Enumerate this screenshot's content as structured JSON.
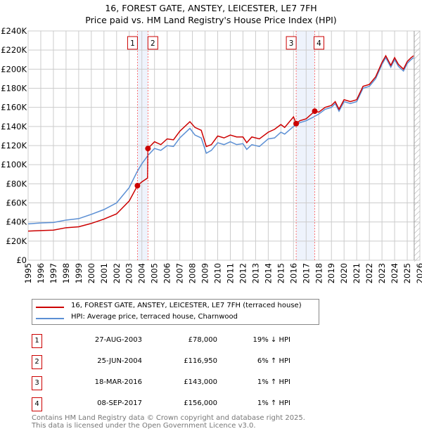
{
  "chart_data": {
    "type": "line",
    "title": "16, FOREST GATE, ANSTEY, LEICESTER, LE7 7FH",
    "subtitle": "Price paid vs. HM Land Registry's House Price Index (HPI)",
    "xlim": [
      1995,
      2026
    ],
    "ylim": [
      0,
      240000
    ],
    "y_ticks": [
      "£0",
      "£20K",
      "£40K",
      "£60K",
      "£80K",
      "£100K",
      "£120K",
      "£140K",
      "£160K",
      "£180K",
      "£200K",
      "£220K",
      "£240K"
    ],
    "x_ticks": [
      "1995",
      "1996",
      "1997",
      "1998",
      "1999",
      "2000",
      "2001",
      "2002",
      "2003",
      "2004",
      "2005",
      "2006",
      "2007",
      "2008",
      "2009",
      "2010",
      "2011",
      "2012",
      "2013",
      "2014",
      "2015",
      "2016",
      "2017",
      "2018",
      "2019",
      "2020",
      "2021",
      "2022",
      "2023",
      "2024",
      "2025",
      "2026"
    ],
    "series": [
      {
        "name": "16, FOREST GATE, ANSTEY, LEICESTER, LE7 7FH (terraced house)",
        "color": "#cc0000",
        "x": [
          1995,
          1996,
          1997,
          1998,
          1999,
          2000,
          2001,
          2002,
          2003,
          2003.65,
          2004,
          2004.45,
          2004.48,
          2005,
          2005.5,
          2006,
          2006.5,
          2007,
          2007.8,
          2008.2,
          2008.7,
          2009.1,
          2009.5,
          2010,
          2010.5,
          2011,
          2011.5,
          2012,
          2012.3,
          2012.7,
          2013.3,
          2014,
          2014.5,
          2015,
          2015.3,
          2016,
          2016.21,
          2016.5,
          2017,
          2017.68,
          2018,
          2018.5,
          2019,
          2019.3,
          2019.6,
          2020,
          2020.5,
          2021,
          2021.5,
          2022,
          2022.5,
          2023,
          2023.3,
          2023.7,
          2024,
          2024.3,
          2024.7,
          2025,
          2025.3,
          2025.5
        ],
        "y": [
          30500,
          31000,
          31500,
          34000,
          35000,
          38500,
          43000,
          48500,
          62000,
          78000,
          82000,
          86000,
          116950,
          124000,
          121000,
          127000,
          126000,
          135000,
          145000,
          139000,
          136000,
          119000,
          121000,
          130000,
          128000,
          131000,
          129000,
          129000,
          123000,
          129000,
          127000,
          134000,
          137000,
          142000,
          139000,
          150000,
          143000,
          146000,
          148000,
          156000,
          155000,
          160000,
          162000,
          166000,
          158000,
          168000,
          166000,
          168000,
          182000,
          184000,
          192000,
          207000,
          214000,
          204000,
          212000,
          205000,
          200000,
          208000,
          212000,
          214000
        ]
      },
      {
        "name": "HPI: Average price, terraced house, Charnwood",
        "color": "#5b8fd4",
        "x": [
          1995,
          1996,
          1997,
          1998,
          1999,
          2000,
          2001,
          2002,
          2003,
          2003.6,
          2004,
          2004.5,
          2005,
          2005.5,
          2006,
          2006.5,
          2007,
          2007.8,
          2008.2,
          2008.7,
          2009.1,
          2009.5,
          2010,
          2010.5,
          2011,
          2011.5,
          2012,
          2012.3,
          2012.7,
          2013.3,
          2014,
          2014.5,
          2015,
          2015.3,
          2016,
          2016.5,
          2017,
          2017.6,
          2018,
          2018.5,
          2019,
          2019.3,
          2019.6,
          2020,
          2020.5,
          2021,
          2021.5,
          2022,
          2022.5,
          2023,
          2023.3,
          2023.7,
          2024,
          2024.3,
          2024.7,
          2025,
          2025.3,
          2025.5
        ],
        "y": [
          38000,
          39000,
          39500,
          42000,
          43500,
          48000,
          53000,
          60000,
          76000,
          92000,
          101000,
          110000,
          117000,
          115000,
          120000,
          119000,
          128000,
          138000,
          131000,
          128000,
          112000,
          115000,
          123000,
          121000,
          124000,
          121000,
          122000,
          116000,
          121000,
          119000,
          127000,
          128000,
          134000,
          132000,
          140000,
          144000,
          146000,
          150000,
          153000,
          158000,
          160000,
          164000,
          156000,
          166000,
          164000,
          166000,
          180000,
          182000,
          190000,
          205000,
          212000,
          202000,
          210000,
          203000,
          198000,
          206000,
          210000,
          212000
        ]
      }
    ],
    "transactions": [
      {
        "label": "1",
        "date": "27-AUG-2003",
        "x": 2003.65,
        "price": "£78,000",
        "value": 78000,
        "hpi": "19% ↓ HPI"
      },
      {
        "label": "2",
        "date": "25-JUN-2004",
        "x": 2004.48,
        "price": "£116,950",
        "value": 116950,
        "hpi": "6% ↑ HPI"
      },
      {
        "label": "3",
        "date": "18-MAR-2016",
        "x": 2016.21,
        "price": "£143,000",
        "value": 143000,
        "hpi": "1% ↑ HPI"
      },
      {
        "label": "4",
        "date": "08-SEP-2017",
        "x": 2017.68,
        "price": "£156,000",
        "value": 156000,
        "hpi": "1% ↑ HPI"
      }
    ],
    "legend_position": "bottom"
  },
  "footer": [
    "Contains HM Land Registry data © Crown copyright and database right 2025.",
    "This data is licensed under the Open Government Licence v3.0."
  ]
}
